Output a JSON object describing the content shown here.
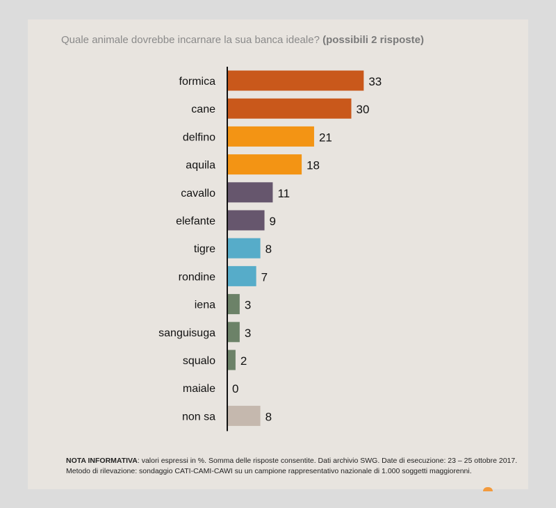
{
  "title": {
    "question": "Quale animale dovrebbe incarnare la sua banca ideale?",
    "note": "(possibili 2 risposte)"
  },
  "colors": {
    "dark_orange": "#c9581b",
    "orange": "#f39414",
    "purple": "#66566d",
    "blue": "#56acc9",
    "green": "#6c8268",
    "beige": "#c5b8ae"
  },
  "chart_data": {
    "type": "bar",
    "orientation": "horizontal",
    "categories": [
      "formica",
      "cane",
      "delfino",
      "aquila",
      "cavallo",
      "elefante",
      "tigre",
      "rondine",
      "iena",
      "sanguisuga",
      "squalo",
      "maiale",
      "non sa"
    ],
    "values": [
      33,
      30,
      21,
      18,
      11,
      9,
      8,
      7,
      3,
      3,
      2,
      0,
      8
    ],
    "bar_colors": [
      "#c9581b",
      "#c9581b",
      "#f39414",
      "#f39414",
      "#66566d",
      "#66566d",
      "#56acc9",
      "#56acc9",
      "#6c8268",
      "#6c8268",
      "#6c8268",
      "#6c8268",
      "#c5b8ae"
    ],
    "unit": "%",
    "xlim": [
      0,
      40
    ],
    "grid": false,
    "legend": "none"
  },
  "footer": {
    "label": "NOTA INFORMATIVA",
    "text": ":  valori espressi in %. Somma delle risposte consentite. Dati archivio SWG. Date di esecuzione: 23 – 25 ottobre 2017. Metodo di rilevazione: sondaggio CATI-CAMI-CAWI su un campione rappresentativo nazionale di 1.000 soggetti maggiorenni."
  }
}
